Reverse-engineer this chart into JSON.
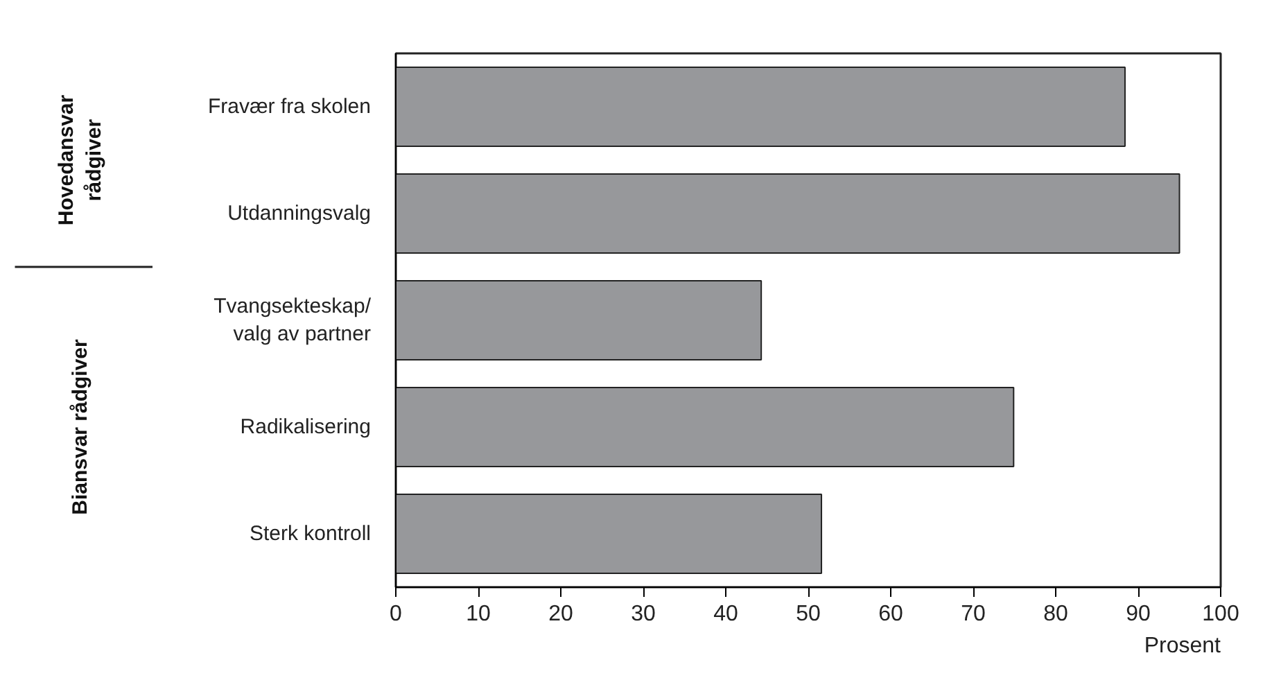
{
  "chart_data": {
    "type": "bar",
    "orientation": "horizontal",
    "categories": [
      "Fravær fra skolen",
      "Utdanningsvalg",
      "Tvangsekteskap/valg av partner",
      "Radikalisering",
      "Sterk kontroll"
    ],
    "values": [
      88.4,
      95.0,
      44.3,
      74.9,
      51.6
    ],
    "color": "#97989b",
    "xlabel": "Prosent",
    "xlim": [
      0,
      100
    ],
    "xticks": [
      0,
      10,
      20,
      30,
      40,
      50,
      60,
      70,
      80,
      90,
      100
    ],
    "grid": false,
    "annotations": [
      "Hovedansvar rådgiver",
      "Biansvar rådgiver"
    ]
  }
}
